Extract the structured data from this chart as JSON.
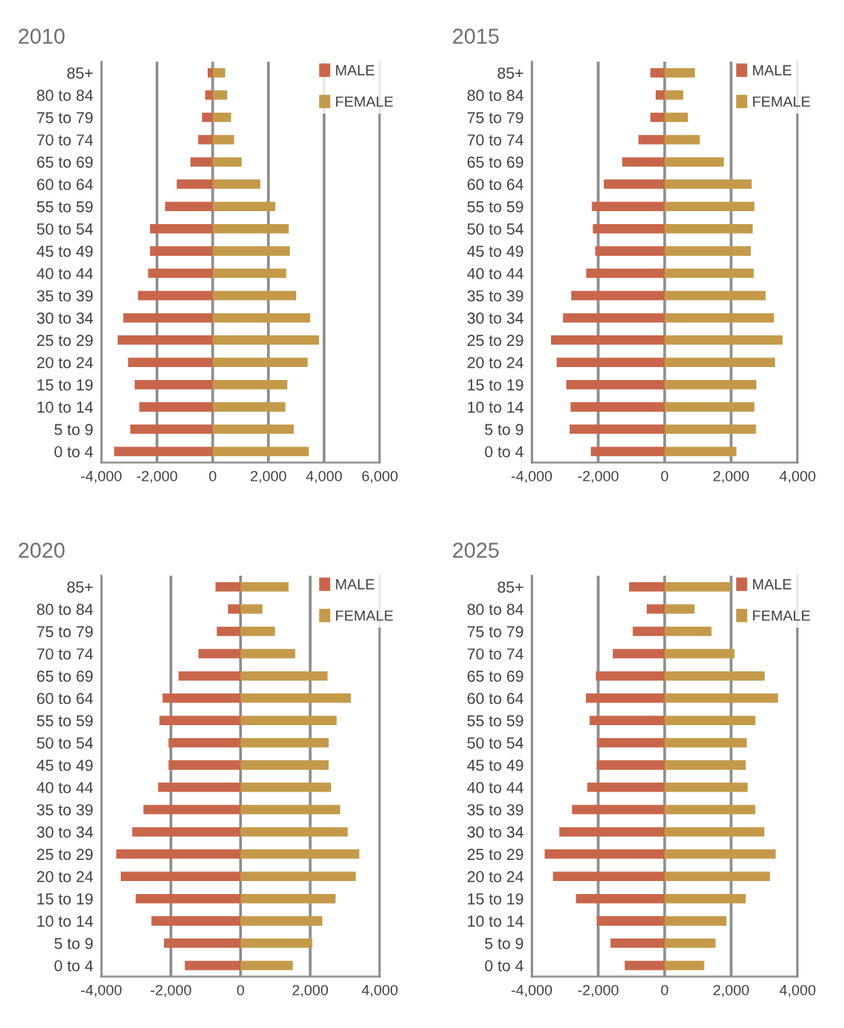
{
  "chart_data": [
    {
      "type": "bar",
      "orientation": "horizontal",
      "title": "2010",
      "stacked": true,
      "categories": [
        "85+",
        "80 to 84",
        "75 to 79",
        "70 to 74",
        "65 to 69",
        "60 to 64",
        "55 to 59",
        "50 to 54",
        "45 to 49",
        "40 to 44",
        "35 to 39",
        "30 to 34",
        "25 to 29",
        "20 to 24",
        "15 to 19",
        "10 to 14",
        "5 to 9",
        "0 to 4"
      ],
      "series": [
        {
          "name": "MALE",
          "color": "#c8664b",
          "values": [
            -180,
            -270,
            -380,
            -520,
            -800,
            -1290,
            -1710,
            -2250,
            -2250,
            -2320,
            -2680,
            -3210,
            -3410,
            -3040,
            -2800,
            -2640,
            -2960,
            -3540
          ]
        },
        {
          "name": "FEMALE",
          "color": "#c49a4a",
          "values": [
            450,
            520,
            660,
            770,
            1040,
            1710,
            2250,
            2730,
            2770,
            2640,
            3000,
            3500,
            3820,
            3410,
            2680,
            2610,
            2910,
            3450
          ]
        }
      ],
      "xlim": [
        -4000,
        6000
      ],
      "xticks": [
        {
          "value": -4000,
          "label": "-4,000"
        },
        {
          "value": -2000,
          "label": "-2,000"
        },
        0,
        {
          "value": 2000,
          "label": "2,000"
        },
        {
          "value": 4000,
          "label": "4,000"
        },
        {
          "value": 6000,
          "label": "6,000"
        }
      ],
      "grid": "x",
      "legend": "top right"
    },
    {
      "type": "bar",
      "orientation": "horizontal",
      "title": "2015",
      "stacked": true,
      "categories": [
        "85+",
        "80 to 84",
        "75 to 79",
        "70 to 74",
        "65 to 69",
        "60 to 64",
        "55 to 59",
        "50 to 54",
        "45 to 49",
        "40 to 44",
        "35 to 39",
        "30 to 34",
        "25 to 29",
        "20 to 24",
        "15 to 19",
        "10 to 14",
        "5 to 9",
        "0 to 4"
      ],
      "series": [
        {
          "name": "MALE",
          "color": "#c8664b",
          "values": [
            -430,
            -270,
            -430,
            -790,
            -1280,
            -1830,
            -2190,
            -2160,
            -2090,
            -2360,
            -2810,
            -3060,
            -3420,
            -3250,
            -2960,
            -2830,
            -2860,
            -2220
          ]
        },
        {
          "name": "FEMALE",
          "color": "#c49a4a",
          "values": [
            910,
            560,
            700,
            1060,
            1780,
            2620,
            2700,
            2650,
            2590,
            2680,
            3040,
            3290,
            3550,
            3320,
            2760,
            2700,
            2750,
            2160
          ]
        }
      ],
      "xlim": [
        -4000,
        4000
      ],
      "xticks": [
        {
          "value": -4000,
          "label": "-4,000"
        },
        {
          "value": -2000,
          "label": "-2,000"
        },
        0,
        {
          "value": 2000,
          "label": "2,000"
        },
        {
          "value": 4000,
          "label": "4,000"
        }
      ],
      "grid": "x",
      "legend": "top right"
    },
    {
      "type": "bar",
      "orientation": "horizontal",
      "title": "2020",
      "stacked": true,
      "categories": [
        "85+",
        "80 to 84",
        "75 to 79",
        "70 to 74",
        "65 to 69",
        "60 to 64",
        "55 to 59",
        "50 to 54",
        "45 to 49",
        "40 to 44",
        "35 to 39",
        "30 to 34",
        "25 to 29",
        "20 to 24",
        "15 to 19",
        "10 to 14",
        "5 to 9",
        "0 to 4"
      ],
      "series": [
        {
          "name": "MALE",
          "color": "#c8664b",
          "values": [
            -720,
            -360,
            -680,
            -1210,
            -1780,
            -2240,
            -2330,
            -2070,
            -2070,
            -2370,
            -2790,
            -3110,
            -3570,
            -3440,
            -3010,
            -2560,
            -2200,
            -1600
          ]
        },
        {
          "name": "FEMALE",
          "color": "#c49a4a",
          "values": [
            1380,
            630,
            990,
            1570,
            2500,
            3170,
            2760,
            2530,
            2530,
            2600,
            2860,
            3080,
            3410,
            3310,
            2730,
            2350,
            2060,
            1500
          ]
        }
      ],
      "xlim": [
        -4000,
        4000
      ],
      "xticks": [
        {
          "value": -4000,
          "label": "-4,000"
        },
        {
          "value": -2000,
          "label": "-2,000"
        },
        0,
        {
          "value": 2000,
          "label": "2,000"
        },
        {
          "value": 4000,
          "label": "4,000"
        }
      ],
      "grid": "x",
      "legend": "top right"
    },
    {
      "type": "bar",
      "orientation": "horizontal",
      "title": "2025",
      "stacked": true,
      "categories": [
        "85+",
        "80 to 84",
        "75 to 79",
        "70 to 74",
        "65 to 69",
        "60 to 64",
        "55 to 59",
        "50 to 54",
        "45 to 49",
        "40 to 44",
        "35 to 39",
        "30 to 34",
        "25 to 29",
        "20 to 24",
        "15 to 19",
        "10 to 14",
        "5 to 9",
        "0 to 4"
      ],
      "series": [
        {
          "name": "MALE",
          "color": "#c8664b",
          "values": [
            -1070,
            -540,
            -960,
            -1560,
            -2070,
            -2370,
            -2260,
            -2030,
            -2040,
            -2330,
            -2790,
            -3170,
            -3610,
            -3360,
            -2670,
            -2040,
            -1630,
            -1200
          ]
        },
        {
          "name": "FEMALE",
          "color": "#c49a4a",
          "values": [
            1990,
            900,
            1410,
            2100,
            3010,
            3410,
            2730,
            2470,
            2440,
            2500,
            2730,
            3000,
            3340,
            3170,
            2440,
            1860,
            1530,
            1190
          ]
        }
      ],
      "xlim": [
        -4000,
        4000
      ],
      "xticks": [
        {
          "value": -4000,
          "label": "-4,000"
        },
        {
          "value": -2000,
          "label": "-2,000"
        },
        0,
        {
          "value": 2000,
          "label": "2,000"
        },
        {
          "value": 4000,
          "label": "4,000"
        }
      ],
      "grid": "x",
      "legend": "top right"
    }
  ]
}
